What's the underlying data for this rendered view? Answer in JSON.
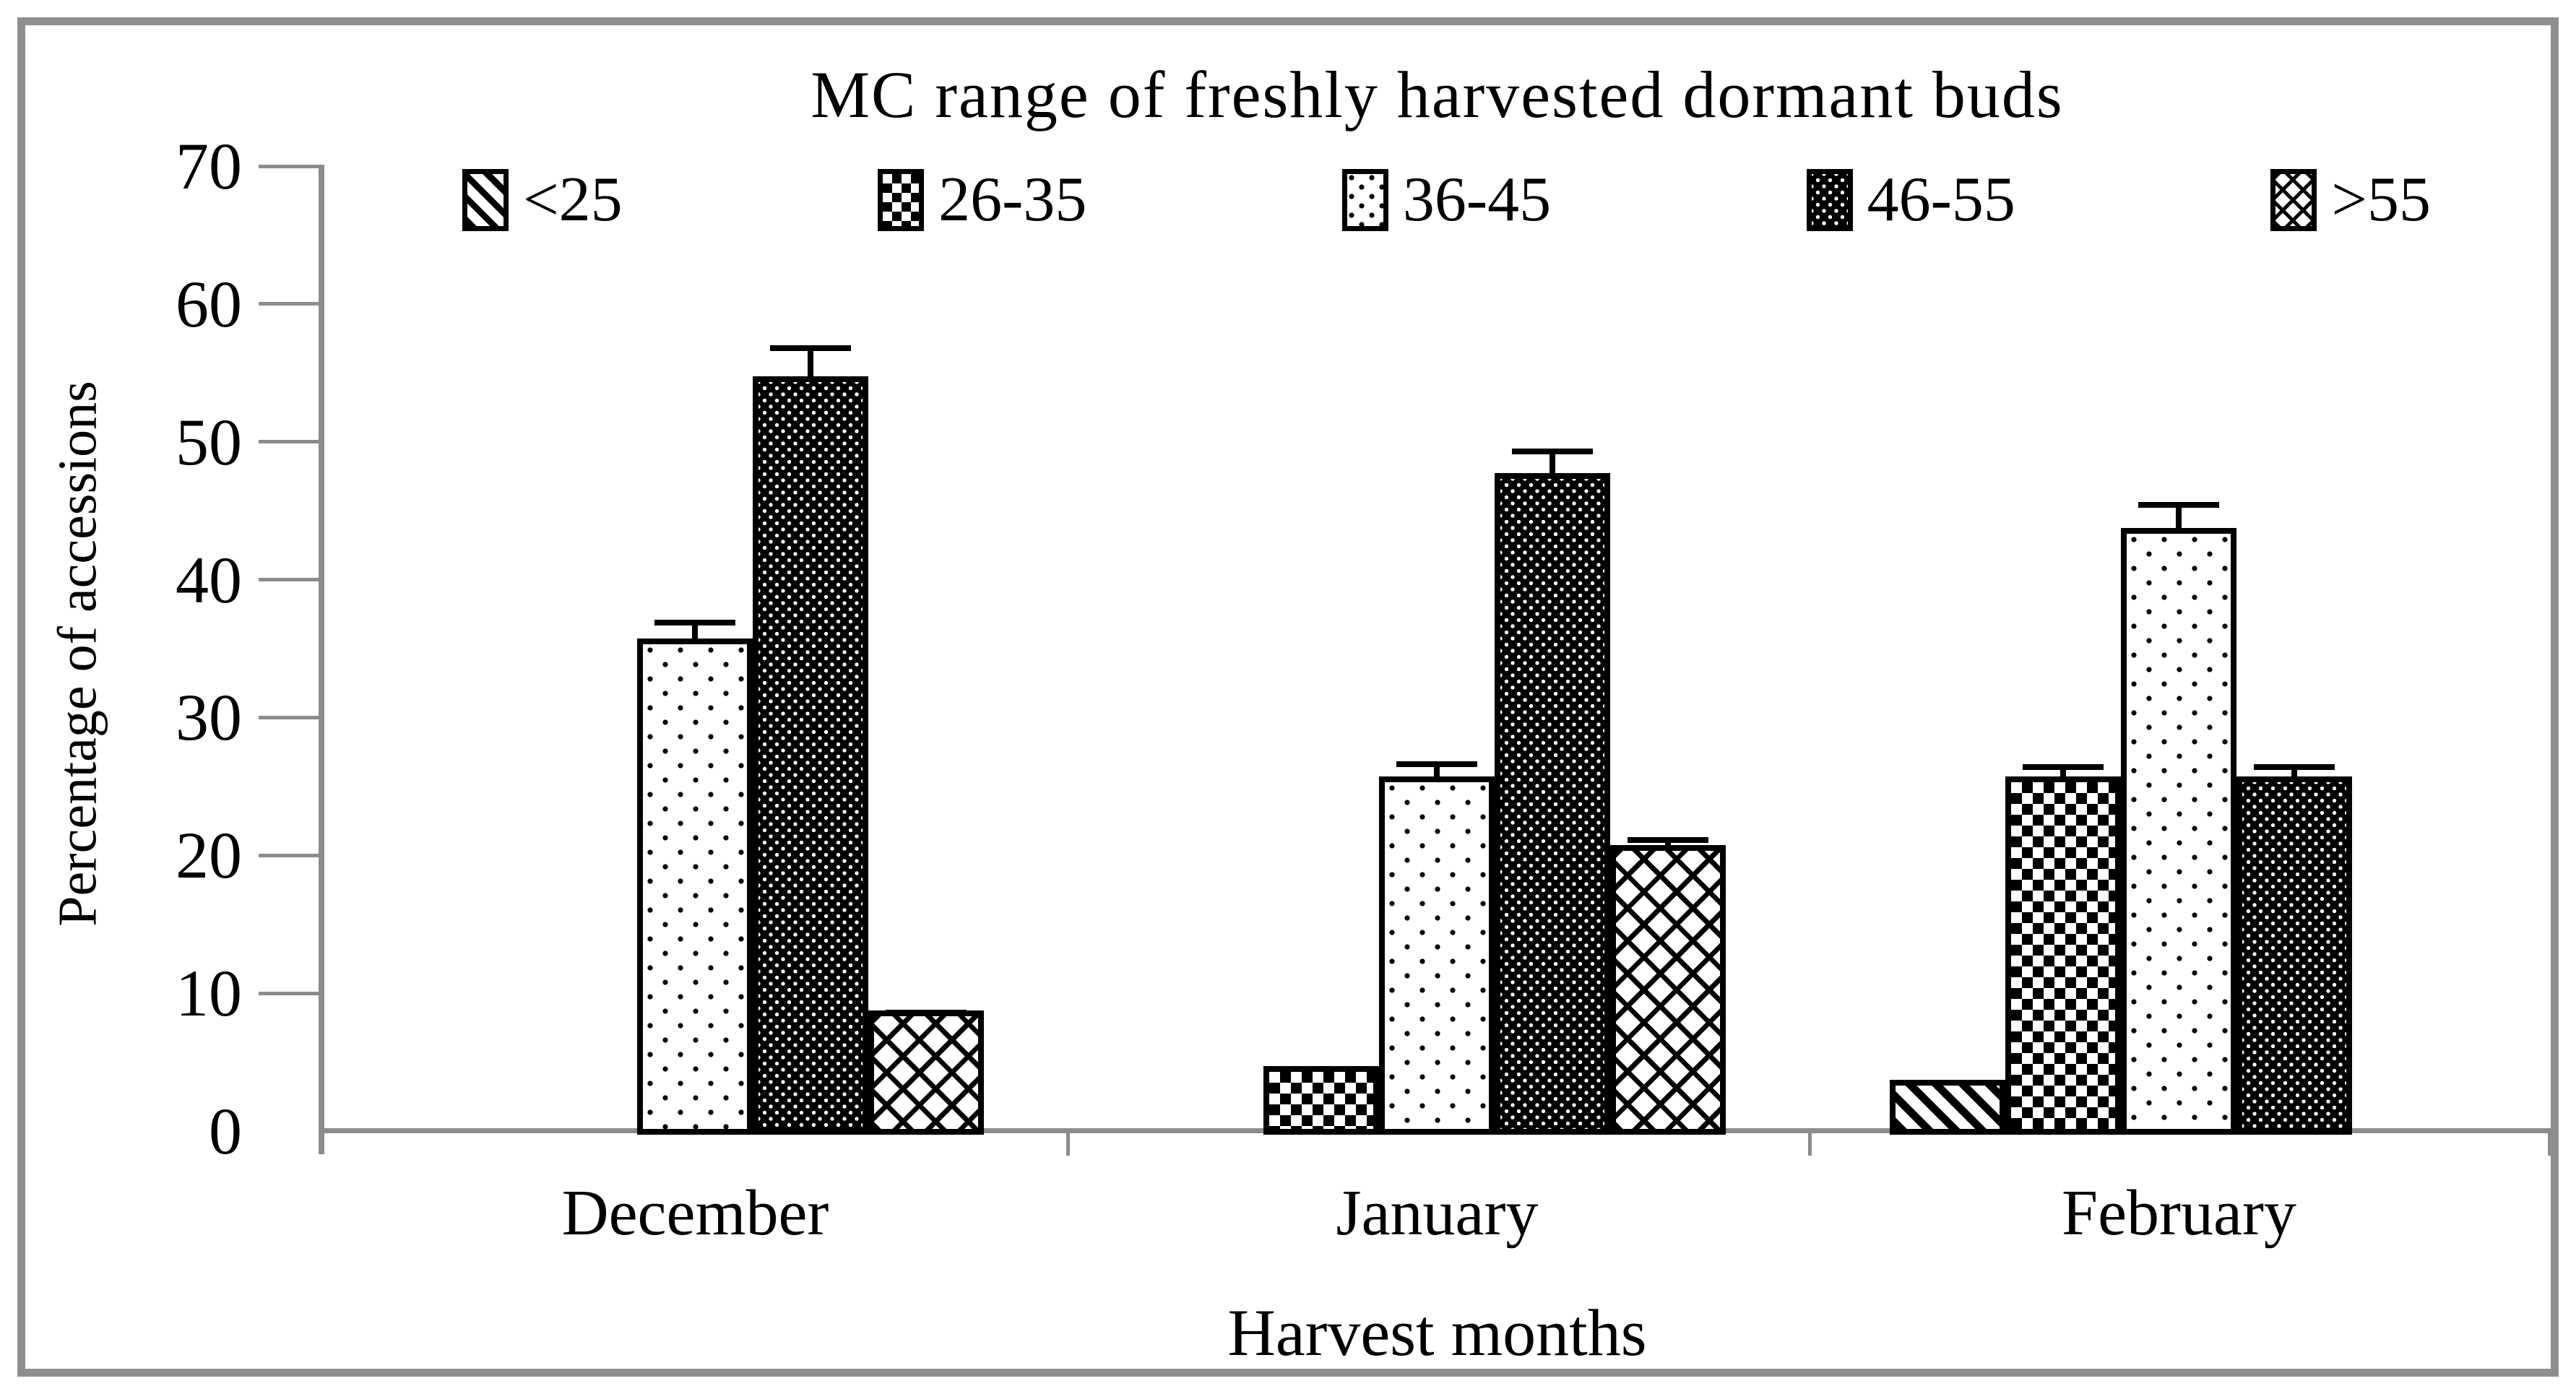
{
  "chart_data": {
    "type": "bar",
    "title": "MC range of freshly harvested dormant buds",
    "xlabel": "Harvest months",
    "ylabel": "Percentage of accessions",
    "categories": [
      "December",
      "January",
      "February"
    ],
    "series": [
      {
        "name": "<25",
        "pattern": "diagonal-stripes",
        "values": [
          0,
          0,
          4
        ],
        "errors": [
          0,
          0,
          0
        ]
      },
      {
        "name": "26-35",
        "pattern": "checkerboard",
        "values": [
          0,
          5,
          26
        ],
        "errors": [
          0,
          0.4,
          1.3
        ]
      },
      {
        "name": "36-45",
        "pattern": "sparse-dots",
        "values": [
          36,
          26,
          44
        ],
        "errors": [
          1.8,
          1.5,
          2.3
        ]
      },
      {
        "name": "46-55",
        "pattern": "dark-weave",
        "values": [
          55,
          48,
          26
        ],
        "errors": [
          2.7,
          2.2,
          1.3
        ]
      },
      {
        "name": ">55",
        "pattern": "diamond-crosshatch",
        "values": [
          9,
          21,
          0
        ],
        "errors": [
          0.5,
          1.0,
          0
        ]
      }
    ],
    "ylim": [
      0,
      70
    ],
    "yticks": [
      0,
      10,
      20,
      30,
      40,
      50,
      60,
      70
    ],
    "legend_position": "top",
    "grid": false,
    "error_bars": true
  },
  "colors": {
    "axis": "#8c8c8c",
    "frame": "#8f8f8f",
    "bar_outline": "#000000",
    "text": "#000000",
    "background": "#ffffff"
  }
}
